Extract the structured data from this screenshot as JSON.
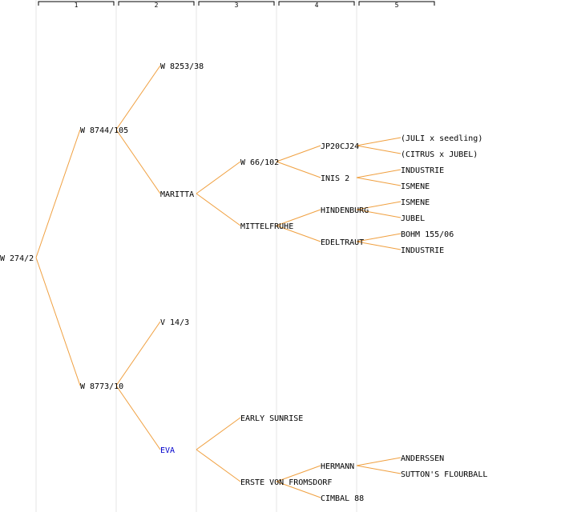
{
  "colors": {
    "link": "#f0a040",
    "text": "#000000",
    "highlight": "#0000cc",
    "separator": "#e6e6e6"
  },
  "generations": [
    "1",
    "2",
    "3",
    "4",
    "5"
  ],
  "tree": {
    "label": "W 274/2",
    "children": [
      {
        "label": "W 8744/105",
        "children": [
          {
            "label": "W 8253/38"
          },
          {
            "label": "MARITTA",
            "children": [
              {
                "label": "W 66/102",
                "children": [
                  {
                    "label": "JP20CJ24",
                    "children": [
                      {
                        "label": "(JULI x seedling)"
                      },
                      {
                        "label": "(CITRUS x JUBEL)"
                      }
                    ]
                  },
                  {
                    "label": "INIS 2",
                    "children": [
                      {
                        "label": "INDUSTRIE"
                      },
                      {
                        "label": "ISMENE"
                      }
                    ]
                  }
                ]
              },
              {
                "label": "MITTELFRUHE",
                "children": [
                  {
                    "label": "HINDENBURG",
                    "children": [
                      {
                        "label": "ISMENE"
                      },
                      {
                        "label": "JUBEL"
                      }
                    ]
                  },
                  {
                    "label": "EDELTRAUT",
                    "children": [
                      {
                        "label": "BOHM 155/06"
                      },
                      {
                        "label": "INDUSTRIE"
                      }
                    ]
                  }
                ]
              }
            ]
          }
        ]
      },
      {
        "label": "W 8773/10",
        "children": [
          {
            "label": "V 14/3"
          },
          {
            "label": "EVA",
            "highlight": true,
            "children": [
              {
                "label": "EARLY SUNRISE"
              },
              {
                "label": "ERSTE VON FROMSDORF",
                "children": [
                  {
                    "label": "HERMANN",
                    "children": [
                      {
                        "label": "ANDERSSEN"
                      },
                      {
                        "label": "SUTTON'S FLOURBALL"
                      }
                    ]
                  },
                  {
                    "label": "CIMBAL 88"
                  }
                ]
              }
            ]
          }
        ]
      }
    ]
  }
}
